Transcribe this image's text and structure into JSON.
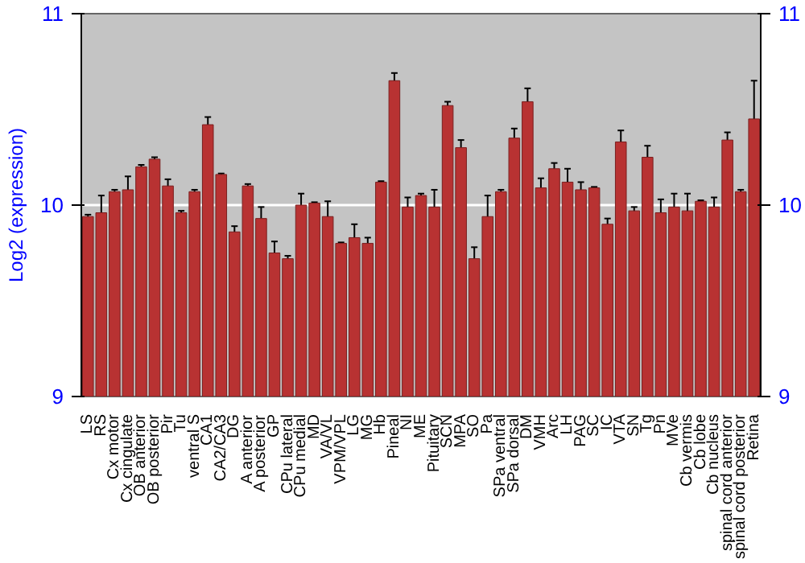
{
  "chart_data": {
    "type": "bar",
    "ylabel": "Log2 (expression)",
    "categories": [
      "LS",
      "RS",
      "Cx motor",
      "Cx cingulate",
      "OB anterior",
      "OB posterior",
      "Pir",
      "Tu",
      "ventral S",
      "CA1",
      "CA2/CA3",
      "DG",
      "A anterior",
      "A posterior",
      "GP",
      "CPu lateral",
      "CPu medial",
      "MD",
      "VA/VL",
      "VPM/VPL",
      "LG",
      "MG",
      "Hb",
      "Pineal",
      "NI",
      "ME",
      "Pituitary",
      "SCN",
      "MPA",
      "SO",
      "Pa",
      "SPa ventral",
      "SPa dorsal",
      "DM",
      "VMH",
      "Arc",
      "LH",
      "PAG",
      "SC",
      "IC",
      "VTA",
      "SN",
      "Tg",
      "Pn",
      "MVe",
      "Cb vermis",
      "Cb lobe",
      "Cb nucleus",
      "spinal cord anterior",
      "spinal cord posterior",
      "Retina"
    ],
    "values": [
      9.94,
      9.96,
      10.07,
      10.08,
      10.2,
      10.24,
      10.1,
      9.96,
      10.07,
      10.42,
      10.16,
      9.86,
      10.1,
      9.93,
      9.75,
      9.72,
      10.0,
      10.01,
      9.94,
      9.8,
      9.83,
      9.8,
      10.12,
      10.65,
      9.99,
      10.05,
      9.99,
      10.52,
      10.3,
      9.72,
      9.94,
      10.07,
      10.35,
      10.54,
      10.09,
      10.19,
      10.12,
      10.08,
      10.09,
      9.9,
      10.33,
      9.97,
      10.25,
      9.96,
      9.99,
      9.97,
      10.02,
      9.99,
      10.34,
      10.07,
      10.45
    ],
    "errors": [
      0.01,
      0.09,
      0.01,
      0.07,
      0.01,
      0.01,
      0.035,
      0.01,
      0.01,
      0.04,
      0.005,
      0.03,
      0.01,
      0.06,
      0.06,
      0.015,
      0.06,
      0.005,
      0.08,
      0.005,
      0.07,
      0.03,
      0.005,
      0.04,
      0.05,
      0.01,
      0.09,
      0.02,
      0.04,
      0.06,
      0.11,
      0.01,
      0.05,
      0.07,
      0.05,
      0.03,
      0.07,
      0.04,
      0.005,
      0.03,
      0.06,
      0.02,
      0.06,
      0.07,
      0.07,
      0.09,
      0.005,
      0.05,
      0.04,
      0.01,
      0.2
    ],
    "color": "#b83232",
    "ylim": [
      9,
      11
    ],
    "yticks": [
      9,
      10,
      11
    ],
    "y2lim": [
      9,
      11
    ],
    "y2ticks": [
      9,
      10,
      11
    ],
    "grid": "y"
  }
}
